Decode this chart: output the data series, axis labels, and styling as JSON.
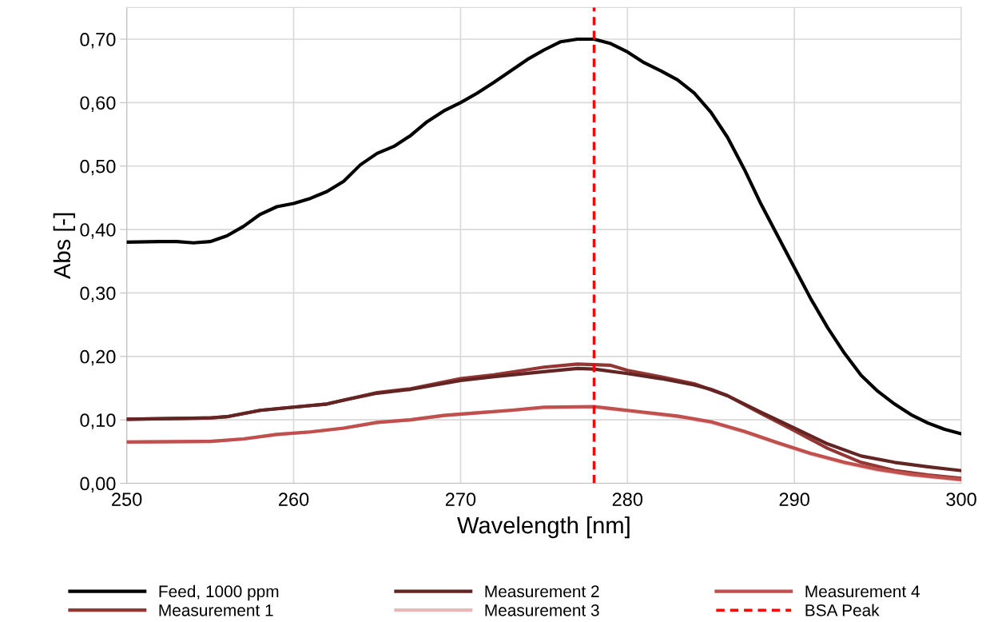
{
  "chart_data": {
    "type": "line",
    "xlabel": "Wavelength [nm]",
    "ylabel": "Abs [-]",
    "xlim": [
      250,
      300
    ],
    "xticks": [
      250,
      260,
      270,
      280,
      290,
      300
    ],
    "ylim": [
      0,
      0.75
    ],
    "yticks": [
      {
        "value": 0,
        "label": "0,00"
      },
      {
        "value": 0.1,
        "label": "0,10"
      },
      {
        "value": 0.2,
        "label": "0,20"
      },
      {
        "value": 0.3,
        "label": "0,30"
      },
      {
        "value": 0.4,
        "label": "0,40"
      },
      {
        "value": 0.5,
        "label": "0,50"
      },
      {
        "value": 0.6,
        "label": "0,60"
      },
      {
        "value": 0.7,
        "label": "0,70"
      }
    ],
    "grid": true,
    "legend": "bottom",
    "line_style": "solid",
    "marker": "none",
    "series": [
      {
        "name": "Feed, 1000 ppm",
        "color": "#000000",
        "x": [
          250,
          252,
          253,
          254,
          255,
          256,
          257,
          258,
          259,
          260,
          261,
          262,
          263,
          264,
          265,
          266,
          267,
          268,
          269,
          270,
          271,
          272,
          273,
          274,
          275,
          276,
          277,
          278,
          279,
          280,
          281,
          282,
          283,
          284,
          285,
          286,
          287,
          288,
          289,
          290,
          291,
          292,
          293,
          294,
          295,
          296,
          297,
          298,
          299,
          300
        ],
        "values": [
          0.38,
          0.381,
          0.381,
          0.379,
          0.381,
          0.39,
          0.405,
          0.424,
          0.436,
          0.441,
          0.449,
          0.46,
          0.476,
          0.502,
          0.52,
          0.531,
          0.548,
          0.57,
          0.587,
          0.6,
          0.615,
          0.632,
          0.65,
          0.668,
          0.683,
          0.696,
          0.7,
          0.7,
          0.693,
          0.68,
          0.663,
          0.65,
          0.636,
          0.615,
          0.585,
          0.545,
          0.495,
          0.44,
          0.39,
          0.34,
          0.29,
          0.245,
          0.205,
          0.17,
          0.145,
          0.125,
          0.108,
          0.095,
          0.085,
          0.078
        ]
      },
      {
        "name": "Measurement 1",
        "color": "#943634",
        "x": [
          250,
          255,
          256,
          258,
          260,
          262,
          263,
          265,
          267,
          270,
          272,
          275,
          277,
          279,
          280,
          282,
          284,
          286,
          288,
          290,
          292,
          294,
          296,
          298,
          300
        ],
        "values": [
          0.101,
          0.103,
          0.105,
          0.115,
          0.12,
          0.125,
          0.131,
          0.143,
          0.149,
          0.165,
          0.171,
          0.183,
          0.188,
          0.186,
          0.178,
          0.168,
          0.157,
          0.138,
          0.11,
          0.083,
          0.055,
          0.033,
          0.02,
          0.013,
          0.008
        ]
      },
      {
        "name": "Measurement 2",
        "color": "#632523",
        "x": [
          250,
          255,
          256,
          258,
          260,
          262,
          263,
          265,
          267,
          270,
          272,
          275,
          277,
          278,
          280,
          282,
          284,
          285,
          286,
          288,
          290,
          292,
          294,
          296,
          298,
          300
        ],
        "values": [
          0.101,
          0.103,
          0.105,
          0.115,
          0.12,
          0.125,
          0.131,
          0.142,
          0.148,
          0.162,
          0.168,
          0.176,
          0.181,
          0.18,
          0.173,
          0.165,
          0.155,
          0.148,
          0.138,
          0.112,
          0.087,
          0.062,
          0.043,
          0.033,
          0.026,
          0.02
        ]
      },
      {
        "name": "Measurement 3",
        "color": "#e6b9b8",
        "x": [
          250,
          255,
          257,
          259,
          261,
          263,
          265,
          267,
          269,
          271,
          273,
          275,
          278,
          280,
          283,
          285,
          287,
          289,
          291,
          293,
          295,
          297,
          300
        ],
        "values": [
          0.065,
          0.066,
          0.07,
          0.077,
          0.081,
          0.087,
          0.096,
          0.1,
          0.107,
          0.111,
          0.115,
          0.119,
          0.12,
          0.114,
          0.105,
          0.096,
          0.081,
          0.063,
          0.046,
          0.032,
          0.021,
          0.013,
          0.005
        ]
      },
      {
        "name": "Measurement 4",
        "color": "#c0504d",
        "x": [
          250,
          255,
          257,
          259,
          261,
          263,
          265,
          267,
          269,
          271,
          273,
          275,
          278,
          280,
          283,
          285,
          287,
          289,
          291,
          293,
          295,
          297,
          300
        ],
        "values": [
          0.065,
          0.066,
          0.07,
          0.077,
          0.081,
          0.087,
          0.096,
          0.1,
          0.107,
          0.111,
          0.115,
          0.12,
          0.121,
          0.115,
          0.106,
          0.097,
          0.082,
          0.064,
          0.047,
          0.033,
          0.022,
          0.014,
          0.006
        ]
      }
    ],
    "ref_lines": [
      {
        "axis": "x",
        "value": 278,
        "label": "BSA Peak",
        "color": "#ff0000",
        "line_style": "dashed"
      }
    ]
  }
}
